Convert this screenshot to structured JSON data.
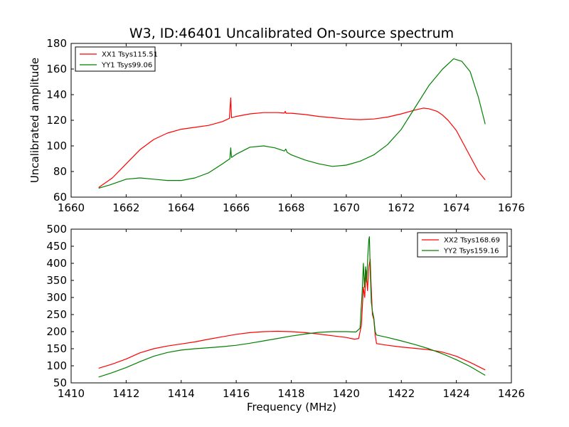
{
  "colors": {
    "xx": "#ff0000",
    "yy": "#008000",
    "frame": "#000000",
    "background": "#ffffff"
  },
  "chart_data": [
    {
      "type": "line",
      "title": "W3, ID:46401 Uncalibrated On-source spectrum",
      "xlabel": "",
      "ylabel": "Uncalibrated amplitude",
      "xlim": [
        1660,
        1676
      ],
      "ylim": [
        60,
        180
      ],
      "xticks": [
        1660,
        1662,
        1664,
        1666,
        1668,
        1670,
        1672,
        1674,
        1676
      ],
      "yticks": [
        60,
        80,
        100,
        120,
        140,
        160,
        180
      ],
      "grid": false,
      "legend_position": "top-left",
      "series": [
        {
          "name": "XX1 Tsys115.51",
          "color": "#ff0000",
          "points": [
            [
              1661.0,
              67.5
            ],
            [
              1661.5,
              75
            ],
            [
              1662.0,
              86
            ],
            [
              1662.5,
              97
            ],
            [
              1663.0,
              105
            ],
            [
              1663.5,
              110
            ],
            [
              1664.0,
              113
            ],
            [
              1664.5,
              114.5
            ],
            [
              1665.0,
              116
            ],
            [
              1665.5,
              119
            ],
            [
              1665.75,
              121.5
            ],
            [
              1665.8,
              137.5
            ],
            [
              1665.83,
              122
            ],
            [
              1666.0,
              123
            ],
            [
              1666.5,
              125
            ],
            [
              1667.0,
              126
            ],
            [
              1667.5,
              126
            ],
            [
              1667.75,
              125.6
            ],
            [
              1667.78,
              127
            ],
            [
              1667.81,
              125.5
            ],
            [
              1668.0,
              125.5
            ],
            [
              1668.5,
              124.5
            ],
            [
              1669.0,
              123
            ],
            [
              1669.5,
              122
            ],
            [
              1670.0,
              121
            ],
            [
              1670.5,
              120.5
            ],
            [
              1671.0,
              121
            ],
            [
              1671.5,
              122.5
            ],
            [
              1672.0,
              125
            ],
            [
              1672.5,
              128
            ],
            [
              1672.8,
              129.5
            ],
            [
              1673.0,
              129
            ],
            [
              1673.3,
              127
            ],
            [
              1673.5,
              124
            ],
            [
              1673.7,
              120
            ],
            [
              1674.0,
              112
            ],
            [
              1674.3,
              100
            ],
            [
              1674.6,
              88
            ],
            [
              1674.8,
              80
            ],
            [
              1675.05,
              73.5
            ]
          ]
        },
        {
          "name": "YY1 Tsys99.06",
          "color": "#008000",
          "points": [
            [
              1661.0,
              67
            ],
            [
              1661.4,
              69.5
            ],
            [
              1662.0,
              74
            ],
            [
              1662.5,
              75
            ],
            [
              1663.0,
              74
            ],
            [
              1663.5,
              73
            ],
            [
              1664.0,
              73
            ],
            [
              1664.5,
              75
            ],
            [
              1665.0,
              79
            ],
            [
              1665.5,
              86
            ],
            [
              1665.77,
              90
            ],
            [
              1665.8,
              98.5
            ],
            [
              1665.83,
              91
            ],
            [
              1666.0,
              93.5
            ],
            [
              1666.5,
              99
            ],
            [
              1667.0,
              100
            ],
            [
              1667.4,
              98.5
            ],
            [
              1667.75,
              96
            ],
            [
              1667.8,
              97.5
            ],
            [
              1667.85,
              95
            ],
            [
              1668.0,
              93
            ],
            [
              1668.5,
              89
            ],
            [
              1669.0,
              86
            ],
            [
              1669.5,
              84
            ],
            [
              1670.0,
              85
            ],
            [
              1670.5,
              88
            ],
            [
              1671.0,
              93
            ],
            [
              1671.5,
              101
            ],
            [
              1672.0,
              113
            ],
            [
              1672.5,
              130
            ],
            [
              1673.0,
              147
            ],
            [
              1673.5,
              160
            ],
            [
              1673.9,
              168
            ],
            [
              1674.2,
              166
            ],
            [
              1674.5,
              158
            ],
            [
              1674.8,
              138
            ],
            [
              1675.05,
              117
            ]
          ]
        }
      ]
    },
    {
      "type": "line",
      "title": "",
      "xlabel": "Frequency (MHz)",
      "ylabel": "",
      "xlim": [
        1410,
        1426
      ],
      "ylim": [
        50,
        500
      ],
      "xticks": [
        1410,
        1412,
        1414,
        1416,
        1418,
        1420,
        1422,
        1424,
        1426
      ],
      "yticks": [
        50,
        100,
        150,
        200,
        250,
        300,
        350,
        400,
        450,
        500
      ],
      "grid": false,
      "legend_position": "top-right",
      "series": [
        {
          "name": "XX2 Tsys168.69",
          "color": "#ff0000",
          "points": [
            [
              1411.0,
              93
            ],
            [
              1411.5,
              105
            ],
            [
              1412.0,
              120
            ],
            [
              1412.5,
              138
            ],
            [
              1413.0,
              150
            ],
            [
              1413.5,
              158
            ],
            [
              1414.0,
              164
            ],
            [
              1414.5,
              170
            ],
            [
              1415.0,
              178
            ],
            [
              1415.5,
              185
            ],
            [
              1416.0,
              192
            ],
            [
              1416.5,
              197
            ],
            [
              1417.0,
              200
            ],
            [
              1417.5,
              201
            ],
            [
              1418.0,
              200
            ],
            [
              1418.5,
              197
            ],
            [
              1419.0,
              193
            ],
            [
              1419.5,
              188
            ],
            [
              1420.0,
              183
            ],
            [
              1420.3,
              178
            ],
            [
              1420.45,
              180
            ],
            [
              1420.55,
              220
            ],
            [
              1420.62,
              330
            ],
            [
              1420.67,
              300
            ],
            [
              1420.72,
              380
            ],
            [
              1420.77,
              320
            ],
            [
              1420.82,
              390
            ],
            [
              1420.87,
              412
            ],
            [
              1420.9,
              340
            ],
            [
              1420.95,
              250
            ],
            [
              1421.0,
              235
            ],
            [
              1421.05,
              190
            ],
            [
              1421.1,
              165
            ],
            [
              1421.5,
              160
            ],
            [
              1422.0,
              155
            ],
            [
              1422.5,
              151
            ],
            [
              1423.0,
              147
            ],
            [
              1423.5,
              140
            ],
            [
              1424.0,
              128
            ],
            [
              1424.5,
              110
            ],
            [
              1425.05,
              88
            ]
          ]
        },
        {
          "name": "YY2 Tsys159.16",
          "color": "#008000",
          "points": [
            [
              1411.0,
              67
            ],
            [
              1411.5,
              80
            ],
            [
              1412.0,
              95
            ],
            [
              1412.5,
              112
            ],
            [
              1413.0,
              128
            ],
            [
              1413.5,
              139
            ],
            [
              1414.0,
              146
            ],
            [
              1414.5,
              150
            ],
            [
              1415.0,
              153
            ],
            [
              1415.5,
              156
            ],
            [
              1416.0,
              160
            ],
            [
              1416.5,
              166
            ],
            [
              1417.0,
              173
            ],
            [
              1417.5,
              180
            ],
            [
              1418.0,
              187
            ],
            [
              1418.5,
              193
            ],
            [
              1419.0,
              198
            ],
            [
              1419.5,
              200
            ],
            [
              1420.0,
              200
            ],
            [
              1420.35,
              199
            ],
            [
              1420.5,
              210
            ],
            [
              1420.58,
              320
            ],
            [
              1420.62,
              400
            ],
            [
              1420.66,
              330
            ],
            [
              1420.7,
              390
            ],
            [
              1420.74,
              345
            ],
            [
              1420.78,
              420
            ],
            [
              1420.82,
              470
            ],
            [
              1420.84,
              478
            ],
            [
              1420.87,
              380
            ],
            [
              1420.91,
              285
            ],
            [
              1420.95,
              260
            ],
            [
              1421.0,
              240
            ],
            [
              1421.05,
              200
            ],
            [
              1421.1,
              190
            ],
            [
              1421.5,
              183
            ],
            [
              1422.0,
              173
            ],
            [
              1422.5,
              162
            ],
            [
              1423.0,
              150
            ],
            [
              1423.5,
              135
            ],
            [
              1424.0,
              118
            ],
            [
              1424.5,
              98
            ],
            [
              1425.05,
              72
            ]
          ]
        }
      ]
    }
  ]
}
